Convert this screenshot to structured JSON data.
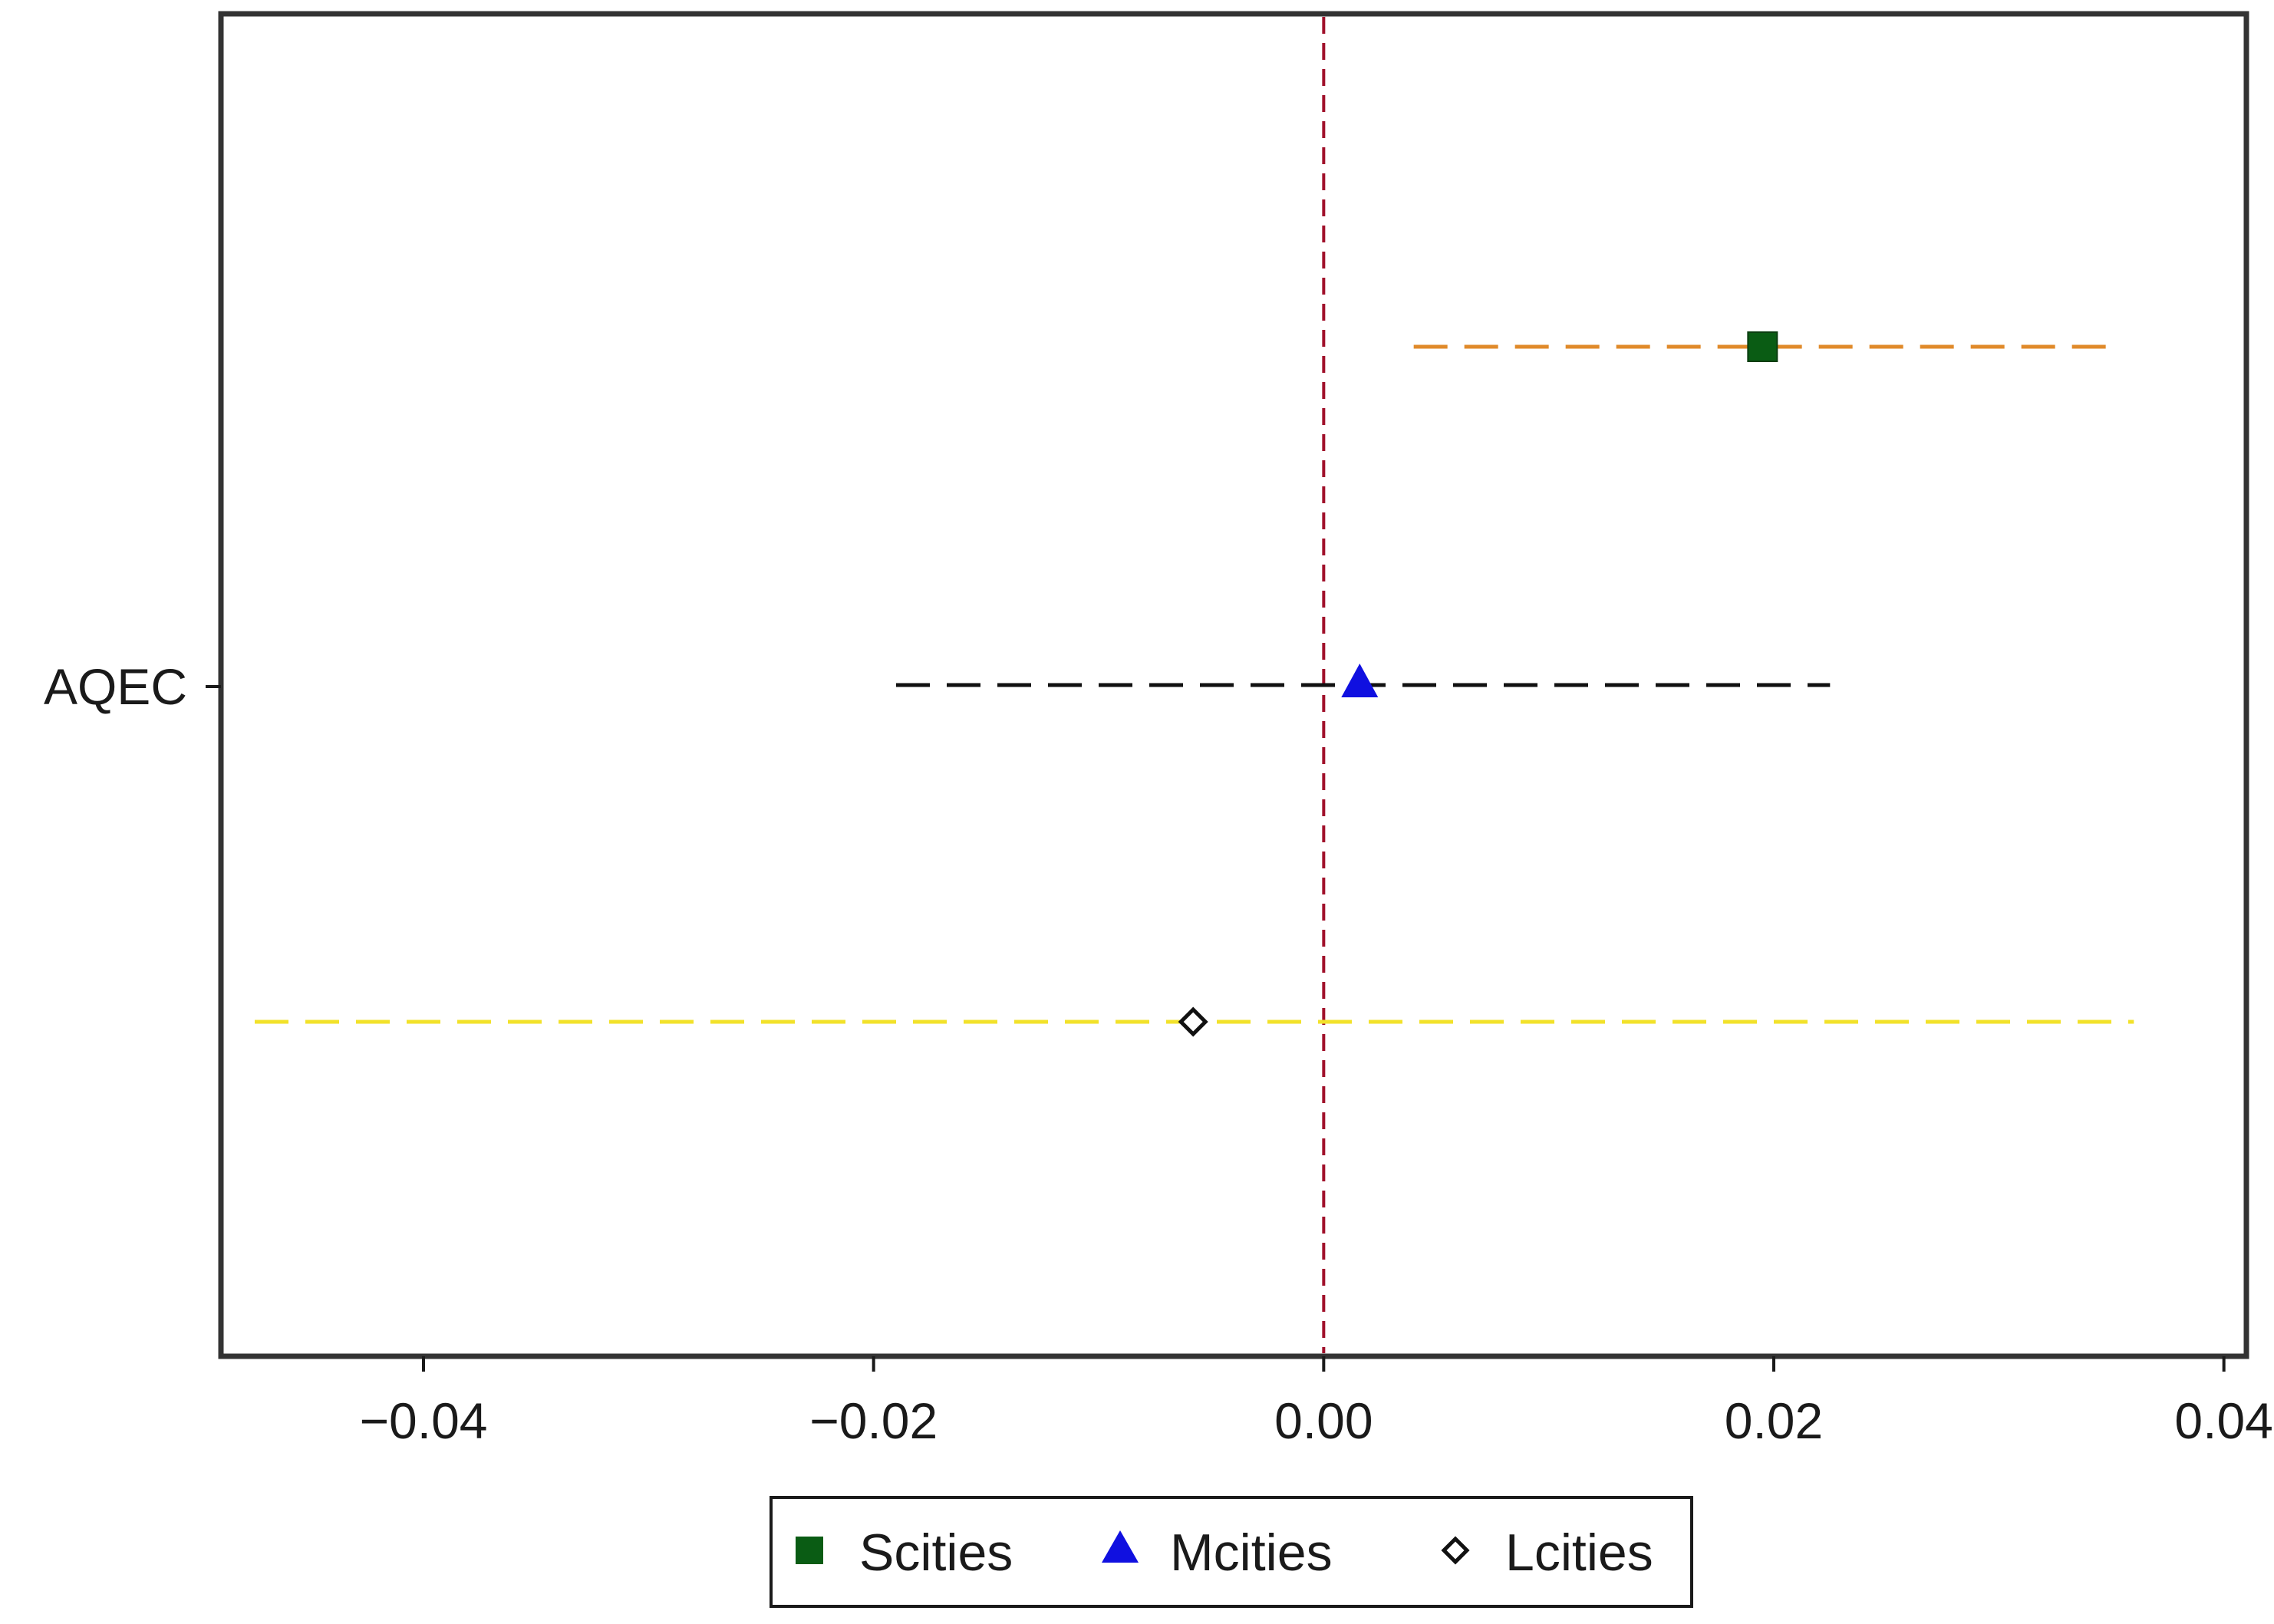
{
  "chart_data": {
    "type": "scatter",
    "subtype": "coefficient-plot",
    "title": "",
    "xlabel": "",
    "ylabel": "",
    "y_category": "AQEC",
    "xlim": [
      -0.049,
      0.041
    ],
    "x_ticks": [
      -0.04,
      -0.02,
      0.0,
      0.02,
      0.04
    ],
    "x_tick_labels": [
      "−0.04",
      "−0.02",
      "0.00",
      "0.02",
      "0.04"
    ],
    "reference_line": {
      "x": 0.0,
      "color": "#a0102a",
      "style": "dashed"
    },
    "grid": false,
    "legend_position": "bottom",
    "series": [
      {
        "name": "Scities",
        "estimate": 0.0195,
        "ci": [
          0.004,
          0.035
        ],
        "marker": "square",
        "marker_color": "#0a5c14",
        "ci_color": "#e08a2a"
      },
      {
        "name": "Mcities",
        "estimate": 0.0016,
        "ci": [
          -0.019,
          0.0225
        ],
        "marker": "triangle",
        "marker_color": "#1010e0",
        "ci_color": "#111111"
      },
      {
        "name": "Lcities",
        "estimate": -0.0058,
        "ci": [
          -0.0475,
          0.036
        ],
        "marker": "diamond-hollow",
        "marker_color": "#111111",
        "ci_color": "#f2e22a"
      }
    ]
  }
}
